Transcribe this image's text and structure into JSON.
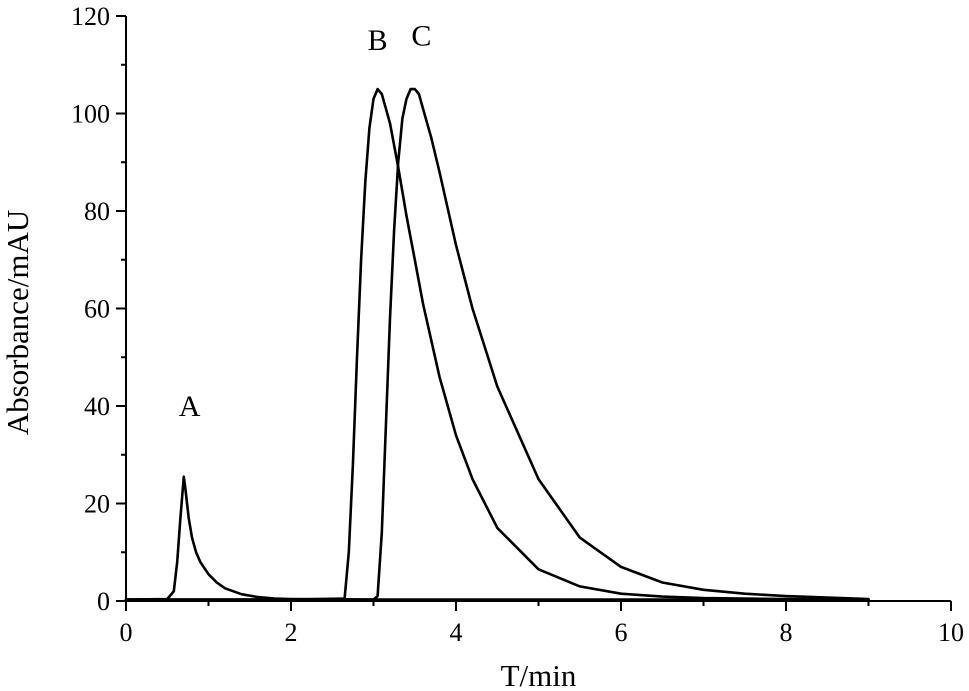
{
  "chart_data": {
    "type": "line",
    "title": "",
    "xlabel": "T/min",
    "ylabel": "Absorbance/mAU",
    "xlim": [
      0,
      10
    ],
    "ylim": [
      0,
      120
    ],
    "x_ticks": [
      "0",
      "2",
      "4",
      "6",
      "8",
      "10"
    ],
    "y_ticks": [
      "0",
      "20",
      "40",
      "60",
      "80",
      "100",
      "120"
    ],
    "grid": false,
    "legend": "none",
    "line_color": "#000000",
    "annotations": [
      {
        "text": "A",
        "x": 0.77,
        "y": 38
      },
      {
        "text": "B",
        "x": 3.05,
        "y": 113
      },
      {
        "text": "C",
        "x": 3.58,
        "y": 114
      }
    ],
    "series": [
      {
        "x": [
          0,
          0.5,
          0.58,
          0.62,
          0.66,
          0.7,
          0.72,
          0.76,
          0.8,
          0.85,
          0.9,
          1.0,
          1.1,
          1.2,
          1.4,
          1.6,
          1.8,
          2.0,
          2.5,
          3.0,
          4.0,
          5.0,
          6.0,
          7.0,
          8.0,
          9.0
        ],
        "y": [
          0.3,
          0.4,
          2,
          8,
          17,
          25.5,
          23,
          17,
          13,
          10,
          8,
          5.5,
          3.8,
          2.6,
          1.4,
          0.8,
          0.5,
          0.4,
          0.35,
          0.3,
          0.3,
          0.3,
          0.3,
          0.3,
          0.3,
          0.3
        ]
      },
      {
        "x": [
          0,
          1.0,
          2.0,
          2.65,
          2.7,
          2.75,
          2.8,
          2.85,
          2.9,
          2.95,
          3.0,
          3.05,
          3.1,
          3.2,
          3.3,
          3.4,
          3.5,
          3.6,
          3.8,
          4.0,
          4.2,
          4.5,
          5.0,
          5.5,
          6.0,
          6.5,
          7.0,
          8.0,
          9.0
        ],
        "y": [
          0.3,
          0.3,
          0.3,
          0.5,
          10,
          28,
          50,
          70,
          86,
          97,
          103,
          105,
          104,
          98,
          89,
          79,
          70,
          61,
          46,
          34,
          25,
          15,
          6.5,
          3,
          1.5,
          0.9,
          0.6,
          0.4,
          0.3
        ]
      },
      {
        "x": [
          0,
          1.0,
          2.0,
          3.0,
          3.05,
          3.1,
          3.15,
          3.2,
          3.25,
          3.3,
          3.35,
          3.4,
          3.45,
          3.5,
          3.55,
          3.6,
          3.7,
          3.8,
          4.0,
          4.2,
          4.5,
          5.0,
          5.5,
          6.0,
          6.5,
          7.0,
          7.5,
          8.0,
          9.0
        ],
        "y": [
          0.3,
          0.3,
          0.3,
          0.3,
          1,
          14,
          36,
          58,
          76,
          90,
          99,
          103,
          105,
          105,
          104,
          101,
          95,
          88,
          73,
          60,
          44,
          25,
          13,
          7,
          3.8,
          2.3,
          1.5,
          1.0,
          0.4
        ]
      }
    ]
  }
}
